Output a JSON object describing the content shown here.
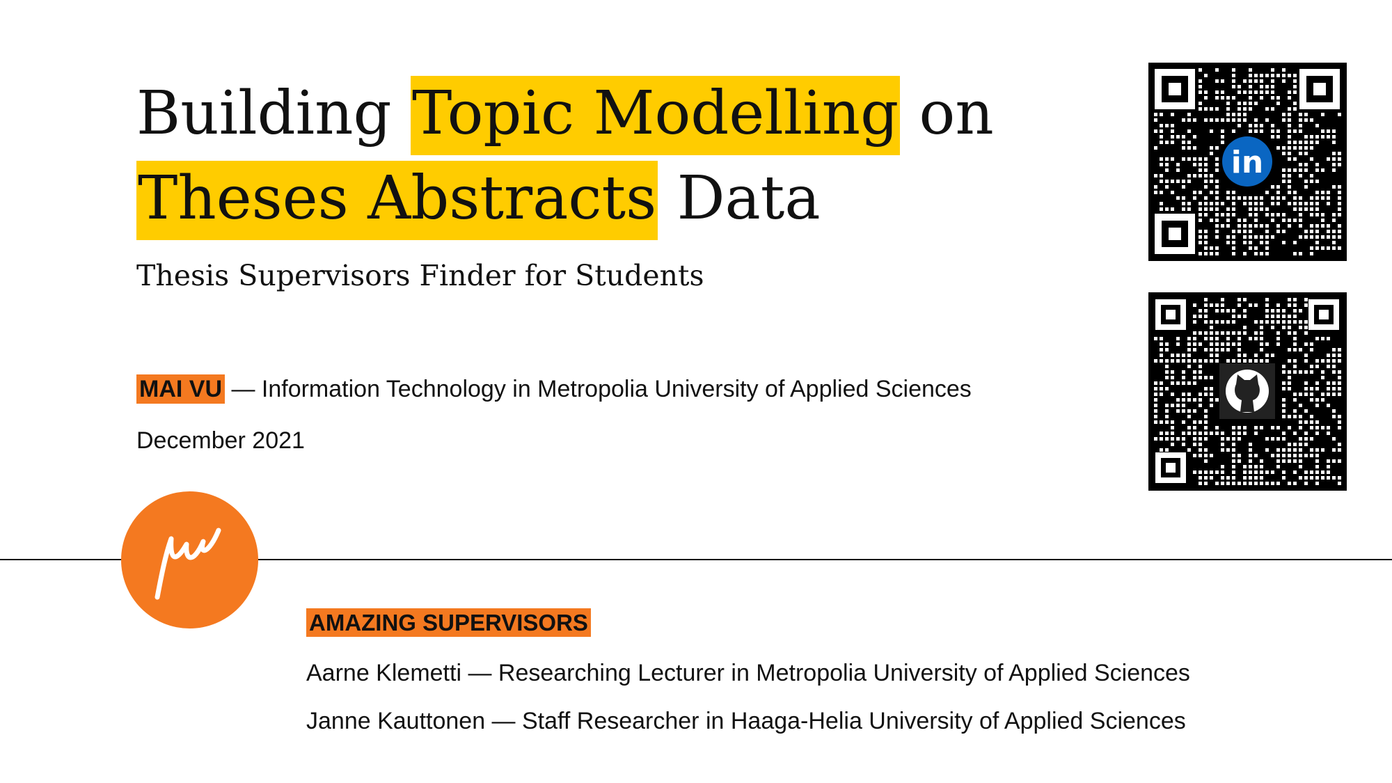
{
  "title": {
    "line1": {
      "pre": "Building ",
      "highlight": "Topic Modelling",
      "post": " on"
    },
    "line2": {
      "highlight": "Theses Abstracts",
      "post": " Data"
    }
  },
  "subtitle": "Thesis Supervisors Finder for Students",
  "author": {
    "name": "MAI VU",
    "affiliation": " — Information Technology in Metropolia University of Applied Sciences"
  },
  "date": "December 2021",
  "supervisors": {
    "title": "AMAZING SUPERVISORS",
    "items": [
      "Aarne Klemetti — Researching Lecturer in Metropolia University of Applied Sciences",
      "Janne Kauttonen — Staff Researcher in Haaga-Helia University of Applied Sciences"
    ]
  },
  "qr_codes": [
    {
      "icon": "linkedin-icon",
      "label": "in",
      "color": "#0A66C2"
    },
    {
      "icon": "github-icon",
      "color": "#111111"
    }
  ],
  "colors": {
    "highlight_yellow": "#FFCC00",
    "accent_orange": "#F47920"
  }
}
